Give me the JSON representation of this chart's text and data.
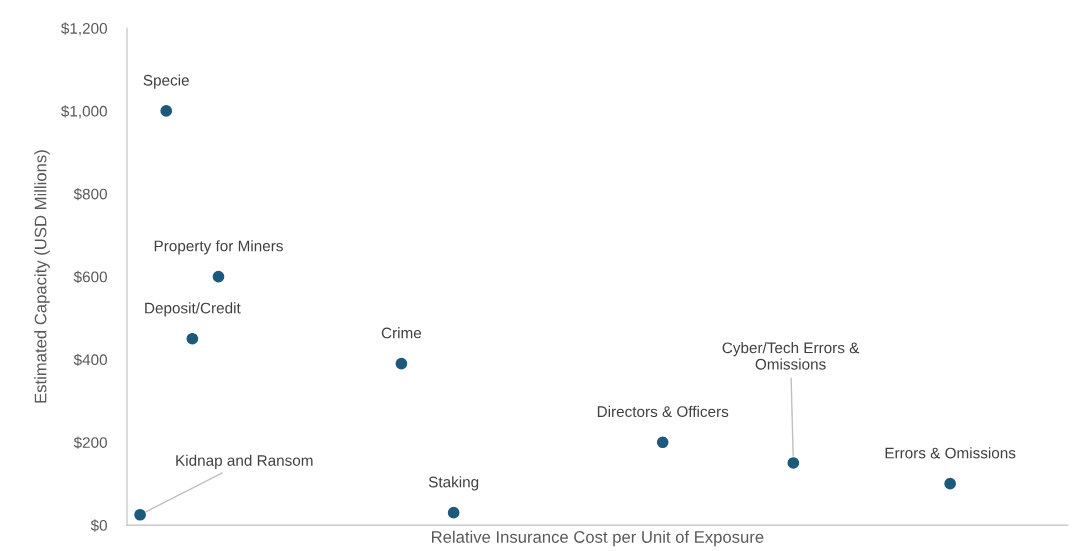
{
  "chart_data": {
    "type": "scatter",
    "xlabel": "Relative Insurance Cost per Unit of Exposure",
    "ylabel": "Estimated Capacity (USD Millions)",
    "categories": [
      null,
      null,
      null,
      null,
      null,
      null,
      null,
      null,
      null,
      null,
      null,
      null,
      null,
      null,
      null,
      null,
      null,
      null,
      null,
      null,
      null,
      null,
      null,
      null,
      null,
      null,
      null,
      null,
      null,
      null,
      null,
      null,
      null,
      null,
      null,
      null
    ],
    "series": [
      {
        "name": "Specie",
        "color": "#1c5a7d",
        "values": [
          null,
          1000,
          null,
          null,
          null,
          null,
          null,
          null,
          null,
          null,
          null,
          null,
          null,
          null,
          null,
          null,
          null,
          null,
          null,
          null,
          null,
          null,
          null,
          null,
          null,
          null,
          null,
          null,
          null,
          null,
          null,
          null,
          null,
          null,
          null,
          null
        ]
      },
      {
        "name": "Property for Miners",
        "color": "#1c5a7d",
        "values": [
          null,
          null,
          null,
          600,
          null,
          null,
          null,
          null,
          null,
          null,
          null,
          null,
          null,
          null,
          null,
          null,
          null,
          null,
          null,
          null,
          null,
          null,
          null,
          null,
          null,
          null,
          null,
          null,
          null,
          null,
          null,
          null,
          null,
          null,
          null,
          null
        ]
      },
      {
        "name": "Deposit/Credit",
        "color": "#1c5a7d",
        "values": [
          null,
          null,
          450,
          null,
          null,
          null,
          null,
          null,
          null,
          null,
          null,
          null,
          null,
          null,
          null,
          null,
          null,
          null,
          null,
          null,
          null,
          null,
          null,
          null,
          null,
          null,
          null,
          null,
          null,
          null,
          null,
          null,
          null,
          null,
          null,
          null
        ]
      },
      {
        "name": "Crime",
        "color": "#1c5a7d",
        "values": [
          null,
          null,
          null,
          null,
          null,
          null,
          null,
          null,
          null,
          null,
          390,
          null,
          null,
          null,
          null,
          null,
          null,
          null,
          null,
          null,
          null,
          null,
          null,
          null,
          null,
          null,
          null,
          null,
          null,
          null,
          null,
          null,
          null,
          null,
          null,
          null
        ]
      },
      {
        "name": "Kidnap and Ransom",
        "color": "#1c5a7d",
        "values": [
          25,
          null,
          null,
          null,
          null,
          null,
          null,
          null,
          null,
          null,
          null,
          null,
          null,
          null,
          null,
          null,
          null,
          null,
          null,
          null,
          null,
          null,
          null,
          null,
          null,
          null,
          null,
          null,
          null,
          null,
          null,
          null,
          null,
          null,
          null,
          null
        ]
      },
      {
        "name": "Staking",
        "color": "#1c5a7d",
        "values": [
          null,
          null,
          null,
          null,
          null,
          null,
          null,
          null,
          null,
          null,
          null,
          null,
          30,
          null,
          null,
          null,
          null,
          null,
          null,
          null,
          null,
          null,
          null,
          null,
          null,
          null,
          null,
          null,
          null,
          null,
          null,
          null,
          null,
          null,
          null,
          null
        ]
      },
      {
        "name": "Directors & Officers",
        "color": "#1c5a7d",
        "values": [
          null,
          null,
          null,
          null,
          null,
          null,
          null,
          null,
          null,
          null,
          null,
          null,
          null,
          null,
          null,
          null,
          null,
          null,
          null,
          null,
          200,
          null,
          null,
          null,
          null,
          null,
          null,
          null,
          null,
          null,
          null,
          null,
          null,
          null,
          null,
          null
        ]
      },
      {
        "name": "Cyber/Tech Errors &\nOmissions",
        "color": "#1c5a7d",
        "values": [
          null,
          null,
          null,
          null,
          null,
          null,
          null,
          null,
          null,
          null,
          null,
          null,
          null,
          null,
          null,
          null,
          null,
          null,
          null,
          null,
          null,
          null,
          null,
          null,
          null,
          150,
          null,
          null,
          null,
          null,
          null,
          null,
          null,
          null,
          null,
          null
        ]
      },
      {
        "name": "Errors & Omissions",
        "color": "#1c5a7d",
        "values": [
          null,
          null,
          null,
          null,
          null,
          null,
          null,
          null,
          null,
          null,
          null,
          null,
          null,
          null,
          null,
          null,
          null,
          null,
          null,
          null,
          null,
          null,
          null,
          null,
          null,
          null,
          null,
          null,
          null,
          null,
          null,
          100,
          null,
          null,
          null,
          null
        ]
      }
    ],
    "marker": "circle",
    "ylim": [
      0,
      1200
    ],
    "tick_labels": "y",
    "grid": false,
    "yticks": [
      {
        "value": 0,
        "label": "$0"
      },
      {
        "value": 200,
        "label": "$200"
      },
      {
        "value": 400,
        "label": "$400"
      },
      {
        "value": 600,
        "label": "$600"
      },
      {
        "value": 800,
        "label": "$800"
      },
      {
        "value": 1000,
        "label": "$1,000"
      },
      {
        "value": 1200,
        "label": "$1,200"
      }
    ]
  }
}
